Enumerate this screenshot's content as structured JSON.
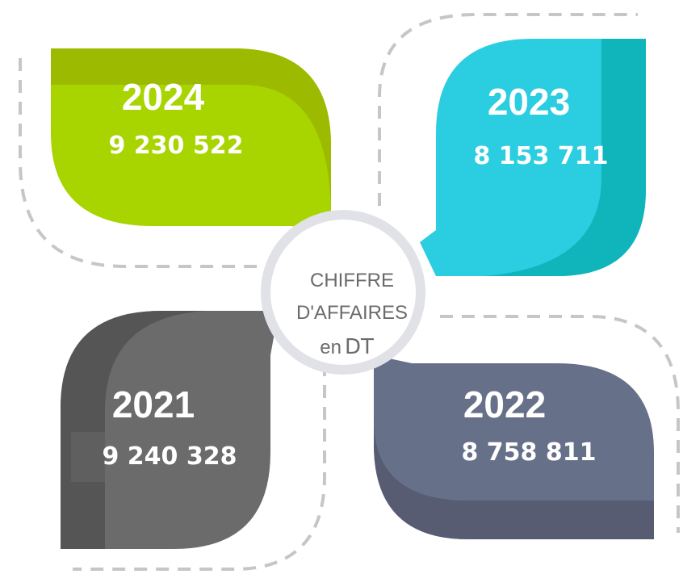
{
  "center": {
    "line1": "CHIFFRE",
    "line2": "D'AFFAIRES",
    "line3_prefix": "en",
    "line3_unit": "DT"
  },
  "tiles": [
    {
      "year": "2024",
      "value": "9 230 522"
    },
    {
      "year": "2023",
      "value": "8 153 711"
    },
    {
      "year": "2021",
      "value": "9 240 328"
    },
    {
      "year": "2022",
      "value": "8 758 811"
    }
  ]
}
